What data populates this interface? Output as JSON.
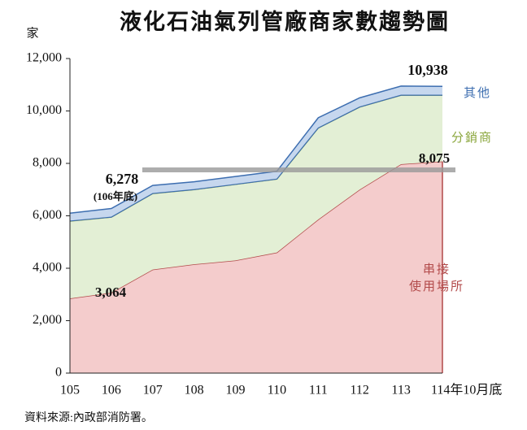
{
  "chart_data": {
    "type": "stacked-area",
    "title": "液化石油氣列管廠商家數趨勢圖",
    "y_axis_label": "家",
    "source": "資料來源:內政部消防署。",
    "categories": [
      "105",
      "106",
      "107",
      "108",
      "109",
      "110",
      "111",
      "112",
      "113",
      "114年10月底"
    ],
    "series": [
      {
        "name": "串接\n使用場所",
        "color": "#b24a4a",
        "fill": "#f4cccc",
        "values": [
          2850,
          3064,
          3950,
          4150,
          4300,
          4600,
          5860,
          7000,
          7970,
          8075
        ]
      },
      {
        "name": "分銷商",
        "color": "#8aa63c",
        "fill": "#e3efd5",
        "values": [
          2950,
          2886,
          2900,
          2850,
          2900,
          2800,
          3490,
          3150,
          2630,
          2525
        ]
      },
      {
        "name": "其他",
        "color": "#3d6eb0",
        "fill": "#c6d7ee",
        "values": [
          300,
          328,
          310,
          300,
          300,
          300,
          390,
          350,
          350,
          338
        ]
      }
    ],
    "annotations": [
      "6,278",
      "(106年底)",
      "3,064",
      "10,938",
      "8,075"
    ],
    "ylim": [
      0,
      12000
    ],
    "yticks": [
      0,
      {
        "value": 2000,
        "label": "2,000"
      },
      {
        "value": 4000,
        "label": "4,000"
      },
      {
        "value": 6000,
        "label": "6,000"
      },
      {
        "value": 8000,
        "label": "8,000"
      },
      {
        "value": 10000,
        "label": "10,000"
      },
      {
        "value": 12000,
        "label": "12,000"
      }
    ]
  }
}
